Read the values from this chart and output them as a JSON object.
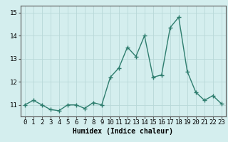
{
  "x": [
    0,
    1,
    2,
    3,
    4,
    5,
    6,
    7,
    8,
    9,
    10,
    11,
    12,
    13,
    14,
    15,
    16,
    17,
    18,
    19,
    20,
    21,
    22,
    23
  ],
  "y": [
    11.0,
    11.2,
    11.0,
    10.8,
    10.75,
    11.0,
    11.0,
    10.85,
    11.1,
    11.0,
    12.2,
    12.6,
    13.5,
    13.1,
    14.0,
    12.2,
    12.3,
    14.35,
    14.8,
    12.45,
    11.55,
    11.2,
    11.4,
    11.05
  ],
  "line_color": "#2e7d6e",
  "marker": "+",
  "marker_size": 4,
  "marker_linewidth": 1.0,
  "bg_color": "#d4eeee",
  "grid_color": "#b8d8d8",
  "xlabel": "Humidex (Indice chaleur)",
  "xlim": [
    -0.5,
    23.5
  ],
  "ylim": [
    10.5,
    15.3
  ],
  "yticks": [
    11,
    12,
    13,
    14,
    15
  ],
  "xticks": [
    0,
    1,
    2,
    3,
    4,
    5,
    6,
    7,
    8,
    9,
    10,
    11,
    12,
    13,
    14,
    15,
    16,
    17,
    18,
    19,
    20,
    21,
    22,
    23
  ],
  "xtick_labels": [
    "0",
    "1",
    "2",
    "3",
    "4",
    "5",
    "6",
    "7",
    "8",
    "9",
    "10",
    "11",
    "12",
    "13",
    "14",
    "15",
    "16",
    "17",
    "18",
    "19",
    "20",
    "21",
    "22",
    "23"
  ],
  "xlabel_fontsize": 7,
  "tick_fontsize": 6.5,
  "line_width": 1.0,
  "spine_color": "#555555"
}
